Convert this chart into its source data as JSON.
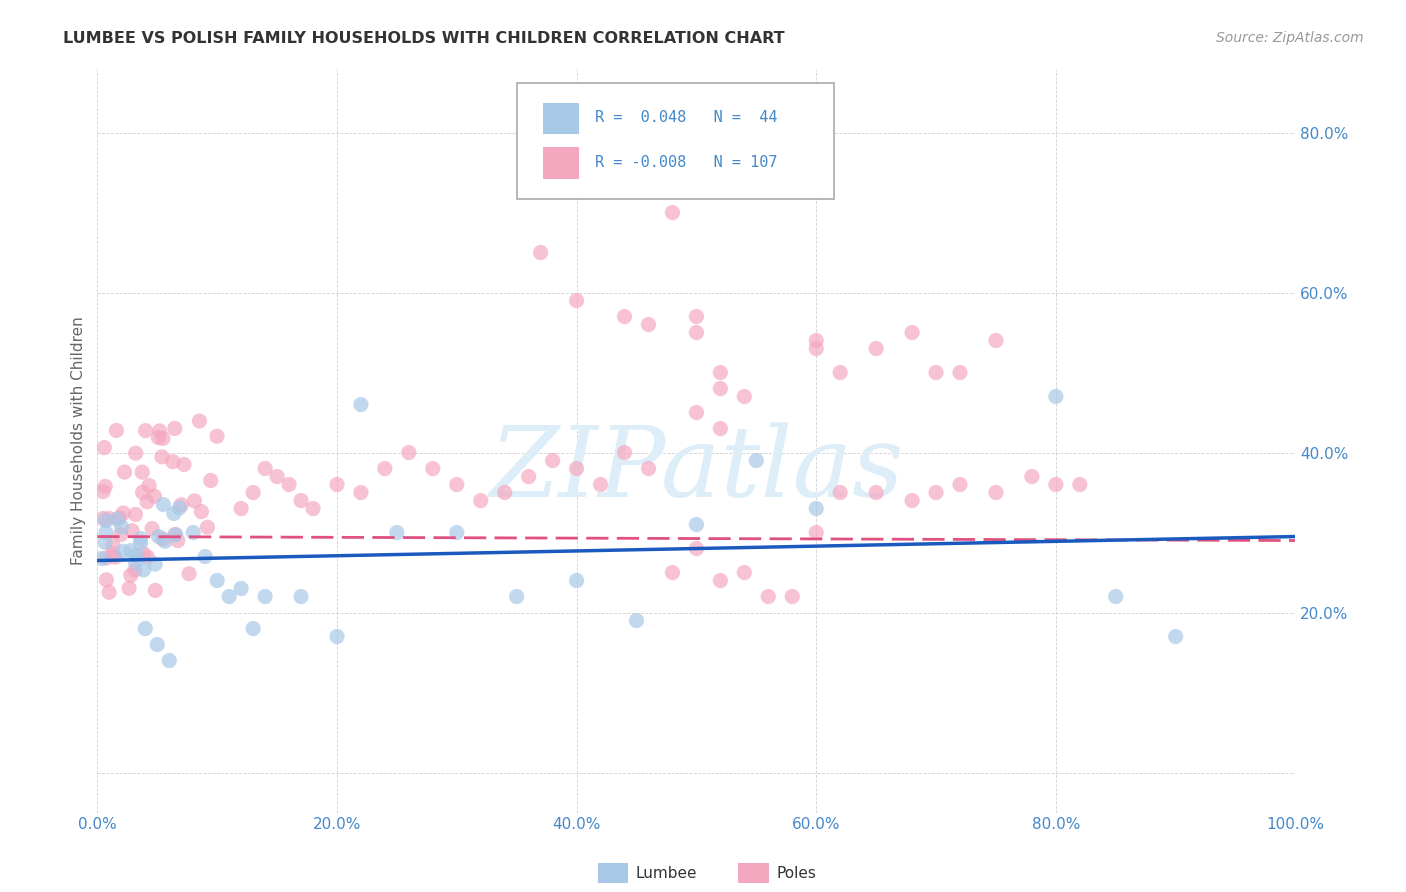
{
  "title": "LUMBEE VS POLISH FAMILY HOUSEHOLDS WITH CHILDREN CORRELATION CHART",
  "source": "Source: ZipAtlas.com",
  "ylabel": "Family Households with Children",
  "xlim": [
    0.0,
    1.0
  ],
  "ylim": [
    -0.05,
    0.88
  ],
  "right_yticks": [
    0.0,
    0.2,
    0.4,
    0.6,
    0.8
  ],
  "right_ytick_labels": [
    "",
    "20.0%",
    "40.0%",
    "60.0%",
    "80.0%"
  ],
  "xticks": [
    0.0,
    0.2,
    0.4,
    0.6,
    0.8,
    1.0
  ],
  "xtick_labels": [
    "0.0%",
    "20.0%",
    "40.0%",
    "60.0%",
    "80.0%",
    "100.0%"
  ],
  "lumbee_R": 0.048,
  "lumbee_N": 44,
  "poles_R": -0.008,
  "poles_N": 107,
  "lumbee_color": "#a8c8e8",
  "poles_color": "#f4a8c0",
  "lumbee_line_color": "#1a5abf",
  "poles_line_color": "#e05080",
  "watermark_color": "#ddeef8",
  "grid_color": "#cccccc",
  "title_color": "#333333",
  "source_color": "#999999",
  "tick_color": "#4488cc",
  "ylabel_color": "#666666",
  "lumbee_line_start_y": 0.265,
  "lumbee_line_end_y": 0.295,
  "poles_line_start_y": 0.295,
  "poles_line_end_y": 0.29
}
